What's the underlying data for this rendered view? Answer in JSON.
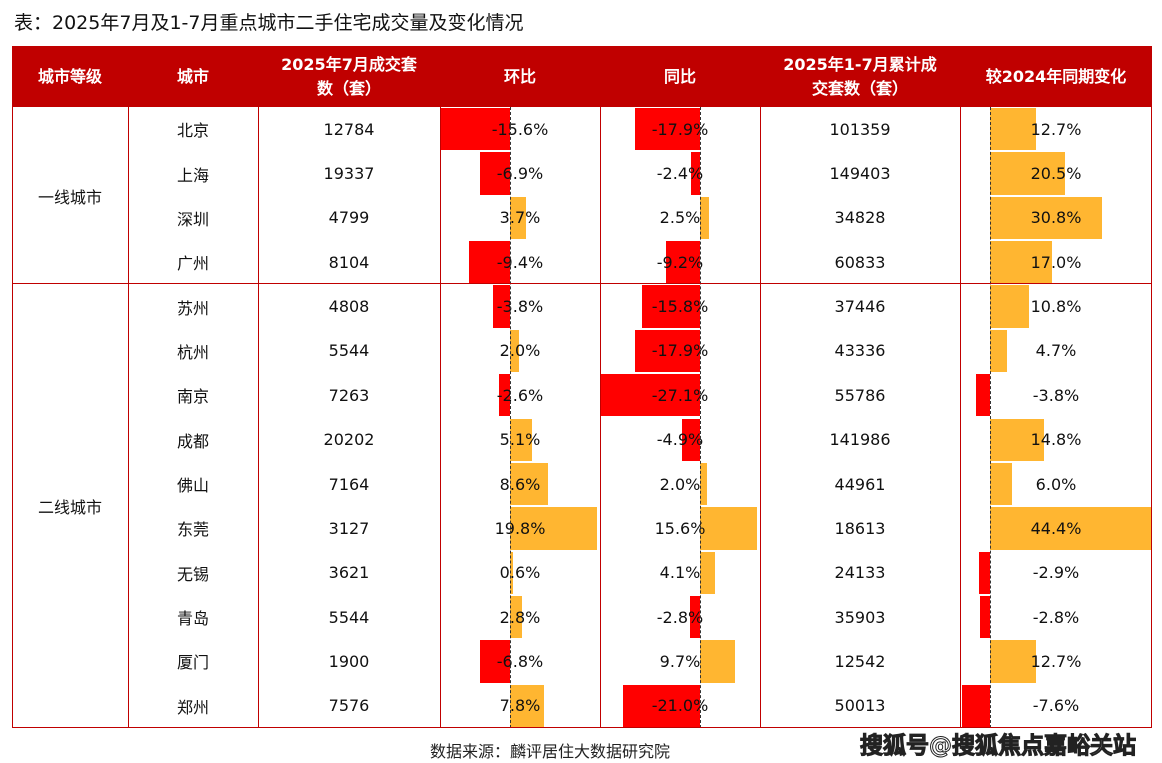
{
  "title": "表：2025年7月及1-7月重点城市二手住宅成交量及变化情况",
  "source": "数据来源：麟评居住大数据研究院",
  "watermark": "搜狐号@搜狐焦点嘉峪关站",
  "colors": {
    "header": "#c00000",
    "negative": "#ff0000",
    "positive": "#ffb631"
  },
  "chart_data": {
    "type": "table",
    "columns": [
      "城市等级",
      "城市",
      "2025年7月成交套数（套）",
      "环比",
      "同比",
      "2025年1-7月累计成交套数（套）",
      "较2024年同期变化"
    ],
    "tiers": [
      {
        "name": "一线城市",
        "count": 4
      },
      {
        "name": "二线城市",
        "count": 10
      }
    ],
    "rows": [
      {
        "city": "北京",
        "july": "12784",
        "mom": -15.6,
        "yoy": -17.9,
        "ytd": "101359",
        "ytd_chg": 12.7
      },
      {
        "city": "上海",
        "july": "19337",
        "mom": -6.9,
        "yoy": -2.4,
        "ytd": "149403",
        "ytd_chg": 20.5
      },
      {
        "city": "深圳",
        "july": "4799",
        "mom": 3.7,
        "yoy": 2.5,
        "ytd": "34828",
        "ytd_chg": 30.8
      },
      {
        "city": "广州",
        "july": "8104",
        "mom": -9.4,
        "yoy": -9.2,
        "ytd": "60833",
        "ytd_chg": 17.0
      },
      {
        "city": "苏州",
        "july": "4808",
        "mom": -3.8,
        "yoy": -15.8,
        "ytd": "37446",
        "ytd_chg": 10.8
      },
      {
        "city": "杭州",
        "july": "5544",
        "mom": 2.0,
        "yoy": -17.9,
        "ytd": "43336",
        "ytd_chg": 4.7
      },
      {
        "city": "南京",
        "july": "7263",
        "mom": -2.6,
        "yoy": -27.1,
        "ytd": "55786",
        "ytd_chg": -3.8
      },
      {
        "city": "成都",
        "july": "20202",
        "mom": 5.1,
        "yoy": -4.9,
        "ytd": "141986",
        "ytd_chg": 14.8
      },
      {
        "city": "佛山",
        "july": "7164",
        "mom": 8.6,
        "yoy": 2.0,
        "ytd": "44961",
        "ytd_chg": 6.0
      },
      {
        "city": "东莞",
        "july": "3127",
        "mom": 19.8,
        "yoy": 15.6,
        "ytd": "18613",
        "ytd_chg": 44.4
      },
      {
        "city": "无锡",
        "july": "3621",
        "mom": 0.6,
        "yoy": 4.1,
        "ytd": "24133",
        "ytd_chg": -2.9
      },
      {
        "city": "青岛",
        "july": "5544",
        "mom": 2.8,
        "yoy": -2.8,
        "ytd": "35903",
        "ytd_chg": -2.8
      },
      {
        "city": "厦门",
        "july": "1900",
        "mom": -6.8,
        "yoy": 9.7,
        "ytd": "12542",
        "ytd_chg": 12.7
      },
      {
        "city": "郑州",
        "july": "7576",
        "mom": 7.8,
        "yoy": -21.0,
        "ytd": "50013",
        "ytd_chg": -7.6
      }
    ]
  }
}
